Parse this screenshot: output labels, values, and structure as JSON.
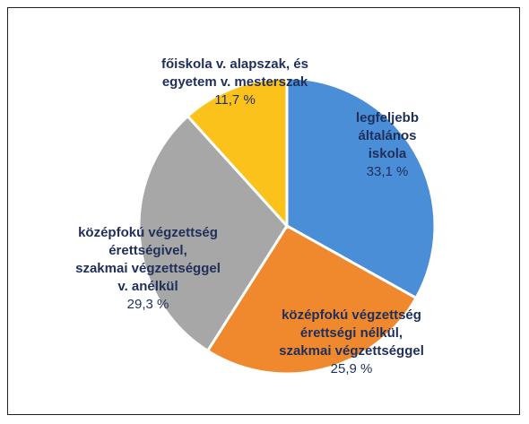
{
  "chart_data": {
    "type": "pie",
    "categories": [
      "legfeljebb\náltalános\niskola",
      "középfokú végzettség\nérettségi nélkül,\nszakmai végzettséggel",
      "középfokú végzettség\nérettségivel,\nszakmai végzettséggel\nv. anélkül",
      "főiskola v. alapszak, és\negyetem v. mesterszak"
    ],
    "values": [
      33.1,
      25.9,
      29.3,
      11.7
    ],
    "value_labels": [
      "33,1 %",
      "25,9 %",
      "29,3 %",
      "11,7 %"
    ],
    "colors": [
      "#4a8ed8",
      "#f0892e",
      "#a7a7a7",
      "#fbc21c"
    ]
  }
}
